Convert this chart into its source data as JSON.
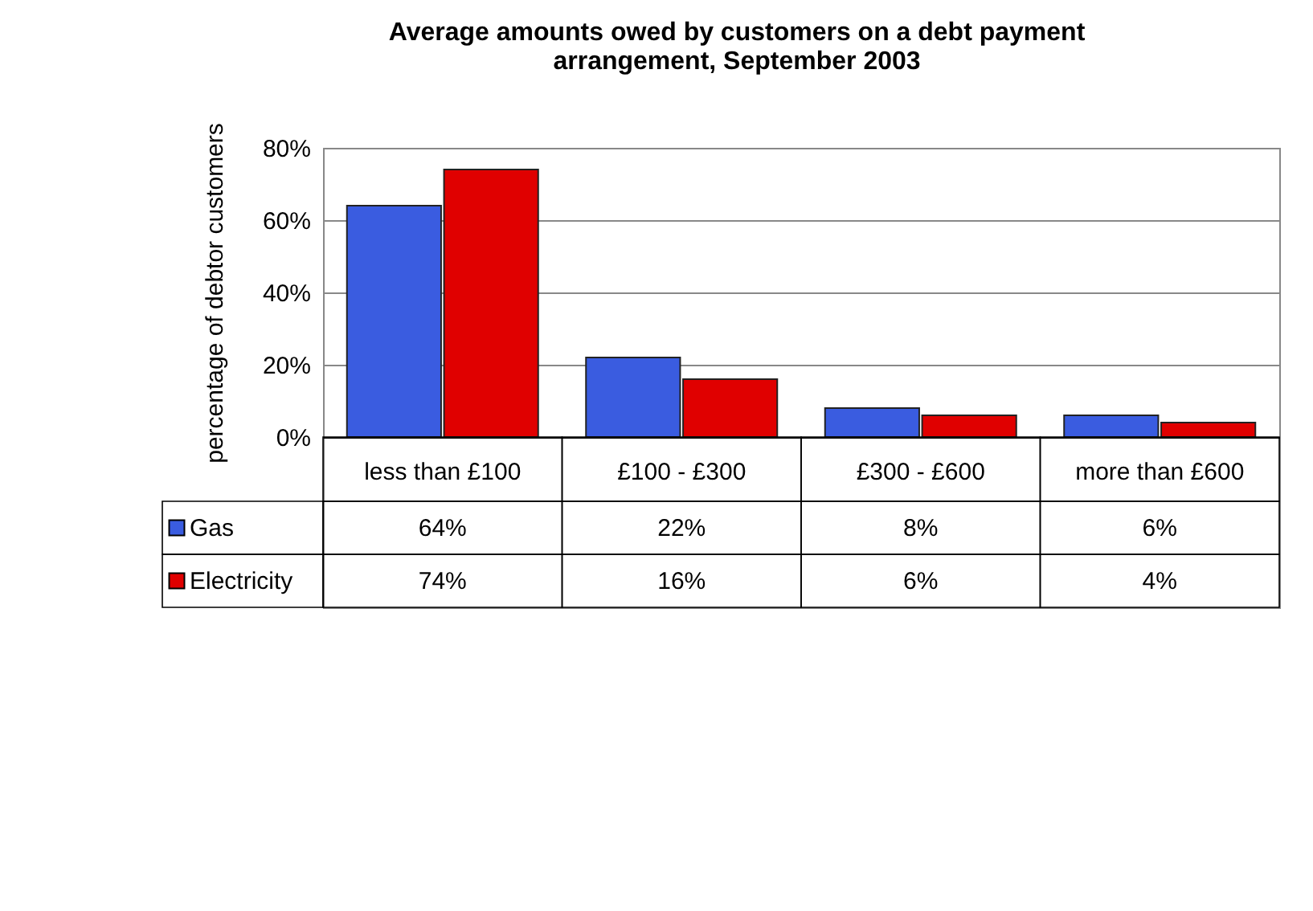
{
  "chart_data": {
    "type": "bar",
    "title": "Average amounts owed by customers on a debt payment arrangement, September 2003",
    "ylabel": "percentage of debtor customers",
    "categories": [
      "less than £100",
      "£100 - £300",
      "£300 - £600",
      "more than £600"
    ],
    "series": [
      {
        "name": "Gas",
        "color": "#3a5ce0",
        "values": [
          64,
          22,
          8,
          6
        ],
        "value_labels": [
          "64%",
          "22%",
          "8%",
          "6%"
        ]
      },
      {
        "name": "Electricity",
        "color": "#e00000",
        "values": [
          74,
          16,
          6,
          4
        ],
        "value_labels": [
          "74%",
          "16%",
          "6%",
          "4%"
        ]
      }
    ],
    "ylim": [
      0,
      80
    ],
    "yticks": [
      {
        "value": 0,
        "label": "0%"
      },
      {
        "value": 20,
        "label": "20%"
      },
      {
        "value": 40,
        "label": "40%"
      },
      {
        "value": 60,
        "label": "60%"
      },
      {
        "value": 80,
        "label": "80%"
      }
    ],
    "grid": "y",
    "legend": "bottom left"
  }
}
